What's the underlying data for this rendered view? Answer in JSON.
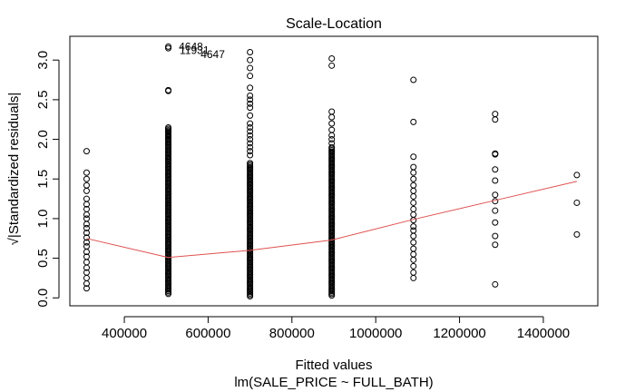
{
  "chart_data": {
    "type": "scatter",
    "title": "Scale-Location",
    "xlabel": "Fitted values",
    "sublabel": "lm(SALE_PRICE ~ FULL_BATH)",
    "ylabel": "√|Standardized residuals|",
    "xlim": [
      270000,
      1530000
    ],
    "ylim": [
      -0.1,
      3.3
    ],
    "x_ticks": [
      400000,
      600000,
      800000,
      1000000,
      1200000,
      1400000
    ],
    "x_tick_labels": [
      "400000",
      "600000",
      "800000",
      "1000000",
      "1200000",
      "1400000"
    ],
    "y_ticks": [
      0.0,
      0.5,
      1.0,
      1.5,
      2.0,
      2.5,
      3.0
    ],
    "y_tick_labels": [
      "0.0",
      "0.5",
      "1.0",
      "1.5",
      "2.0",
      "2.5",
      "3.0"
    ],
    "grid": false,
    "point_color": "#000000",
    "smooth_color": "#e05050",
    "columns": [
      {
        "x": 310000,
        "dense_range": null,
        "y": [
          1.85,
          1.58,
          1.5,
          1.42,
          1.35,
          1.25,
          1.18,
          1.12,
          1.05,
          1.0,
          0.93,
          0.88,
          0.82,
          0.76,
          0.7,
          0.65,
          0.58,
          0.52,
          0.45,
          0.38,
          0.32,
          0.25,
          0.18,
          0.12
        ]
      },
      {
        "x": 505000,
        "dense_range": [
          0.05,
          2.15
        ],
        "y": [
          3.17,
          3.15,
          2.62,
          2.61,
          2.1,
          2.05,
          2.0
        ]
      },
      {
        "x": 700000,
        "dense_range": [
          0.02,
          1.7
        ],
        "y": [
          3.1,
          3.0,
          2.9,
          2.8,
          2.65,
          2.55,
          2.5,
          2.45,
          2.4,
          2.3,
          2.2,
          2.15,
          2.1,
          2.05,
          2.0,
          1.95,
          1.9,
          1.85,
          1.8
        ]
      },
      {
        "x": 895000,
        "dense_range": [
          0.05,
          1.9
        ],
        "y": [
          3.02,
          2.93,
          2.35,
          2.28,
          2.2,
          2.12,
          2.05,
          2.0,
          1.95,
          0.03
        ]
      },
      {
        "x": 1090000,
        "dense_range": null,
        "y": [
          2.75,
          2.22,
          1.78,
          1.65,
          1.58,
          1.5,
          1.42,
          1.35,
          1.28,
          1.2,
          1.12,
          1.05,
          0.98,
          0.9,
          0.85,
          0.78,
          0.7,
          0.62,
          0.55,
          0.48,
          0.4,
          0.32,
          0.25
        ]
      },
      {
        "x": 1285000,
        "dense_range": null,
        "y": [
          2.32,
          2.25,
          1.82,
          1.81,
          1.62,
          1.48,
          1.3,
          1.22,
          1.1,
          0.95,
          0.78,
          0.67,
          0.17
        ]
      },
      {
        "x": 1480000,
        "dense_range": null,
        "y": [
          1.55,
          1.2,
          0.8
        ]
      }
    ],
    "smooth_line": {
      "x": [
        310000,
        505000,
        700000,
        895000,
        1090000,
        1285000,
        1480000
      ],
      "y": [
        0.75,
        0.51,
        0.6,
        0.73,
        0.99,
        1.23,
        1.47
      ]
    },
    "annotations": [
      {
        "text": "4648",
        "x": 530000,
        "y": 3.17
      },
      {
        "text": "11931",
        "x": 532000,
        "y": 3.12
      },
      {
        "text": "4647",
        "x": 640000,
        "y": 3.07
      }
    ]
  }
}
